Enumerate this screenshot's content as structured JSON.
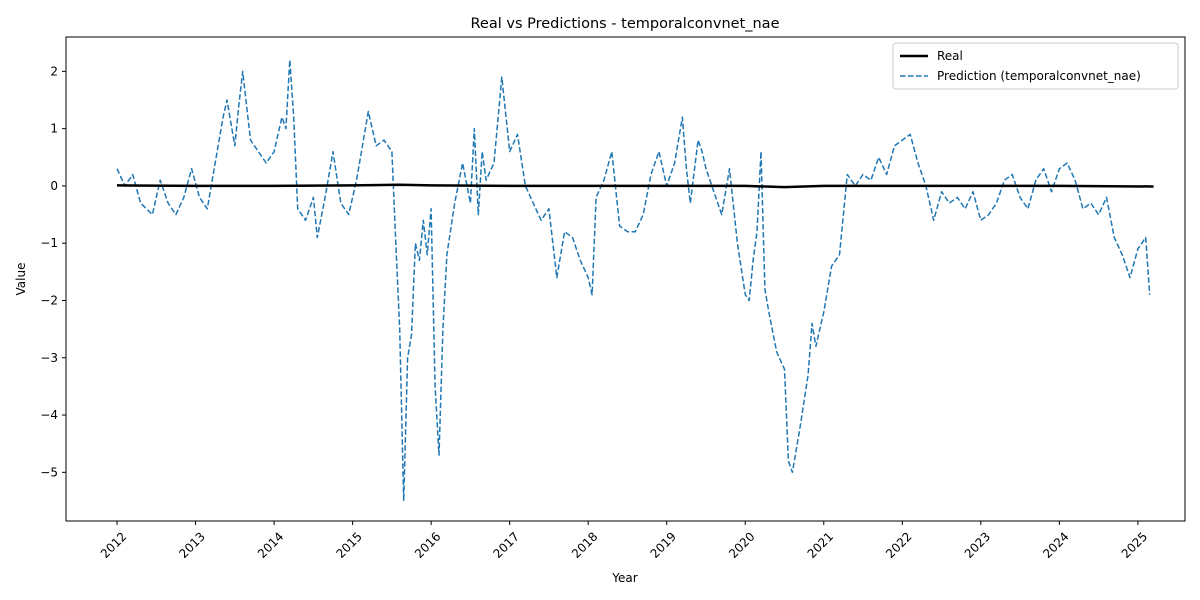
{
  "chart_data": {
    "type": "line",
    "title": "Real vs Predictions - temporalconvnet_nae",
    "xlabel": "Year",
    "ylabel": "Value",
    "xlim": [
      2011.35,
      2025.6
    ],
    "ylim": [
      -5.85,
      2.6
    ],
    "x_ticks": [
      2012,
      2013,
      2014,
      2015,
      2016,
      2017,
      2018,
      2019,
      2020,
      2021,
      2022,
      2023,
      2024,
      2025
    ],
    "x_tick_labels": [
      "2012",
      "2013",
      "2014",
      "2015",
      "2016",
      "2017",
      "2018",
      "2019",
      "2020",
      "2021",
      "2022",
      "2023",
      "2024",
      "2025"
    ],
    "y_ticks": [
      2,
      1,
      0,
      -1,
      -2,
      -3,
      -4,
      -5
    ],
    "y_tick_labels": [
      "2",
      "1",
      "0",
      "−1",
      "−2",
      "−3",
      "−4",
      "−5"
    ],
    "legend_position": "top-right",
    "series": [
      {
        "name": "Real",
        "color": "#000000",
        "style": "solid",
        "x": [
          2012.0,
          2013.0,
          2014.0,
          2015.0,
          2015.6,
          2016.0,
          2017.0,
          2018.0,
          2019.0,
          2020.0,
          2020.5,
          2021.0,
          2022.0,
          2023.0,
          2024.0,
          2025.2
        ],
        "y": [
          0.01,
          0.0,
          0.0,
          0.01,
          0.02,
          0.01,
          0.0,
          0.0,
          0.0,
          0.0,
          -0.02,
          0.0,
          0.0,
          0.0,
          0.0,
          -0.01
        ]
      },
      {
        "name": "Prediction (temporalconvnet_nae)",
        "color": "#1f77b4",
        "style": "dashed",
        "x": [
          2012.0,
          2012.1,
          2012.2,
          2012.3,
          2012.45,
          2012.55,
          2012.65,
          2012.75,
          2012.85,
          2012.95,
          2013.05,
          2013.15,
          2013.3,
          2013.35,
          2013.4,
          2013.5,
          2013.55,
          2013.6,
          2013.7,
          2013.8,
          2013.9,
          2014.0,
          2014.1,
          2014.15,
          2014.2,
          2014.25,
          2014.3,
          2014.4,
          2014.5,
          2014.55,
          2014.65,
          2014.75,
          2014.85,
          2014.95,
          2015.05,
          2015.1,
          2015.2,
          2015.3,
          2015.4,
          2015.5,
          2015.55,
          2015.6,
          2015.65,
          2015.7,
          2015.75,
          2015.8,
          2015.85,
          2015.9,
          2015.95,
          2016.0,
          2016.05,
          2016.1,
          2016.15,
          2016.2,
          2016.3,
          2016.4,
          2016.5,
          2016.55,
          2016.6,
          2016.65,
          2016.7,
          2016.8,
          2016.9,
          2017.0,
          2017.1,
          2017.2,
          2017.3,
          2017.4,
          2017.5,
          2017.6,
          2017.7,
          2017.8,
          2017.9,
          2018.0,
          2018.05,
          2018.1,
          2018.2,
          2018.3,
          2018.4,
          2018.5,
          2018.6,
          2018.7,
          2018.8,
          2018.9,
          2019.0,
          2019.1,
          2019.2,
          2019.25,
          2019.3,
          2019.4,
          2019.45,
          2019.5,
          2019.6,
          2019.7,
          2019.8,
          2019.9,
          2020.0,
          2020.05,
          2020.1,
          2020.15,
          2020.2,
          2020.25,
          2020.3,
          2020.4,
          2020.5,
          2020.55,
          2020.6,
          2020.65,
          2020.7,
          2020.8,
          2020.85,
          2020.9,
          2021.0,
          2021.1,
          2021.2,
          2021.3,
          2021.4,
          2021.5,
          2021.6,
          2021.7,
          2021.8,
          2021.9,
          2022.0,
          2022.1,
          2022.2,
          2022.3,
          2022.4,
          2022.5,
          2022.6,
          2022.7,
          2022.8,
          2022.9,
          2023.0,
          2023.1,
          2023.2,
          2023.3,
          2023.4,
          2023.5,
          2023.6,
          2023.7,
          2023.8,
          2023.9,
          2024.0,
          2024.1,
          2024.2,
          2024.3,
          2024.4,
          2024.5,
          2024.6,
          2024.7,
          2024.8,
          2024.9,
          2025.0,
          2025.1,
          2025.15
        ],
        "y": [
          0.3,
          0.0,
          0.2,
          -0.3,
          -0.5,
          0.1,
          -0.3,
          -0.5,
          -0.2,
          0.3,
          -0.2,
          -0.4,
          0.8,
          1.2,
          1.5,
          0.7,
          1.4,
          2.0,
          0.8,
          0.6,
          0.4,
          0.6,
          1.2,
          1.0,
          2.2,
          1.2,
          -0.4,
          -0.6,
          -0.2,
          -0.9,
          -0.2,
          0.6,
          -0.3,
          -0.5,
          0.1,
          0.5,
          1.3,
          0.7,
          0.8,
          0.6,
          -1.0,
          -2.5,
          -5.5,
          -3.0,
          -2.6,
          -1.0,
          -1.3,
          -0.6,
          -1.2,
          -0.4,
          -3.5,
          -4.7,
          -2.5,
          -1.2,
          -0.3,
          0.4,
          -0.3,
          1.0,
          -0.5,
          0.6,
          0.1,
          0.4,
          1.9,
          0.6,
          0.9,
          0.0,
          -0.3,
          -0.6,
          -0.4,
          -1.6,
          -0.8,
          -0.9,
          -1.3,
          -1.6,
          -1.9,
          -0.2,
          0.1,
          0.6,
          -0.7,
          -0.8,
          -0.8,
          -0.5,
          0.2,
          0.6,
          0.0,
          0.4,
          1.2,
          0.3,
          -0.3,
          0.8,
          0.6,
          0.3,
          -0.1,
          -0.5,
          0.3,
          -1.0,
          -1.9,
          -2.0,
          -1.3,
          -0.8,
          0.6,
          -1.8,
          -2.2,
          -2.9,
          -3.2,
          -4.8,
          -5.0,
          -4.6,
          -4.2,
          -3.3,
          -2.4,
          -2.8,
          -2.2,
          -1.4,
          -1.2,
          0.2,
          0.0,
          0.2,
          0.1,
          0.5,
          0.2,
          0.7,
          0.8,
          0.9,
          0.4,
          0.0,
          -0.6,
          -0.1,
          -0.3,
          -0.2,
          -0.4,
          -0.1,
          -0.6,
          -0.5,
          -0.3,
          0.1,
          0.2,
          -0.2,
          -0.4,
          0.1,
          0.3,
          -0.1,
          0.3,
          0.4,
          0.1,
          -0.4,
          -0.3,
          -0.5,
          -0.2,
          -0.9,
          -1.2,
          -1.6,
          -1.1,
          -0.9,
          -1.9
        ]
      }
    ]
  }
}
